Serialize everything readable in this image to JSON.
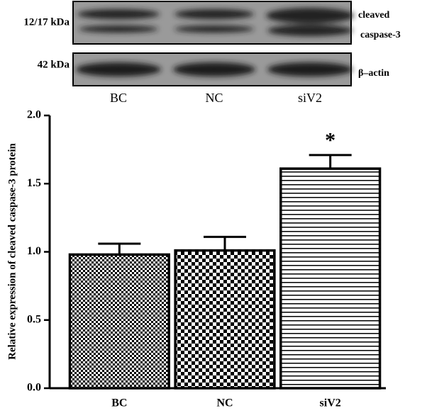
{
  "blot": {
    "left_labels": [
      "12/17 kDa",
      "42 kDa"
    ],
    "right_labels": [
      "cleaved",
      "caspase-3",
      "β–actin"
    ],
    "lanes": [
      "BC",
      "NC",
      "siV2"
    ]
  },
  "chart_data": {
    "type": "bar",
    "y_label": "Relative expression of cleaved  caspase-3 protein",
    "categories": [
      "BC",
      "NC",
      "siV2"
    ],
    "values": [
      0.98,
      1.01,
      1.61
    ],
    "errors": [
      0.08,
      0.1,
      0.1
    ],
    "patterns": [
      "checker-fine",
      "checker",
      "hlines"
    ],
    "color": "#000000",
    "annotation": "*",
    "ylim": [
      0,
      2
    ],
    "yticks": [
      {
        "value": 0,
        "label": "0.0"
      },
      {
        "value": 0.5,
        "label": "0.5"
      },
      {
        "value": 1,
        "label": "1.0"
      },
      {
        "value": 1.5,
        "label": "1.5"
      },
      {
        "value": 2,
        "label": "2.0"
      }
    ],
    "grid": false
  }
}
